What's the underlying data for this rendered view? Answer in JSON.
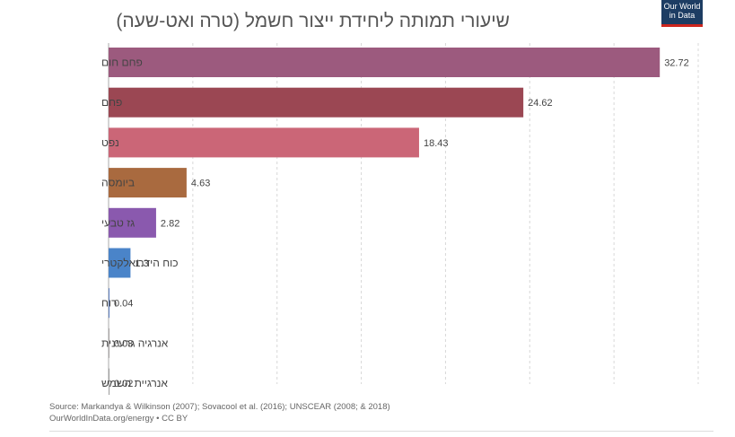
{
  "chart_data": {
    "type": "bar",
    "orientation": "horizontal",
    "title": "שיעורי תמותה ליחידת ייצור חשמל (טרה ואט-שעה)",
    "categories": [
      "פחם חום",
      "פחם",
      "נפט",
      "ביומסה",
      "גז טבעי",
      "כוח הידרואלקטרי",
      "רוח",
      "אנרגיה גרעינית",
      "אנרגיית השמש"
    ],
    "values": [
      32.72,
      24.62,
      18.43,
      4.63,
      2.82,
      1.3,
      0.04,
      0.03,
      0.02
    ],
    "value_labels": [
      "32.72",
      "24.62",
      "18.43",
      "4.63",
      "2.82",
      "1.3",
      "0.04",
      "0.03",
      "0.02"
    ],
    "colors": [
      "#9c5a7e",
      "#9b4753",
      "#cb6677",
      "#a96a3f",
      "#8a59ae",
      "#4a84c9",
      "#5b7dbf",
      "#a7a3a3",
      "#9c9c9c"
    ],
    "xlim": [
      0,
      35
    ],
    "grid": true,
    "legend": "none"
  },
  "logo": {
    "line1": "Our World",
    "line2": "in Data"
  },
  "footer": {
    "source": "Source: Markandya & Wilkinson (2007); Sovacool et al. (2016); UNSCEAR (2008; & 2018)",
    "license": "OurWorldInData.org/energy • CC BY"
  }
}
